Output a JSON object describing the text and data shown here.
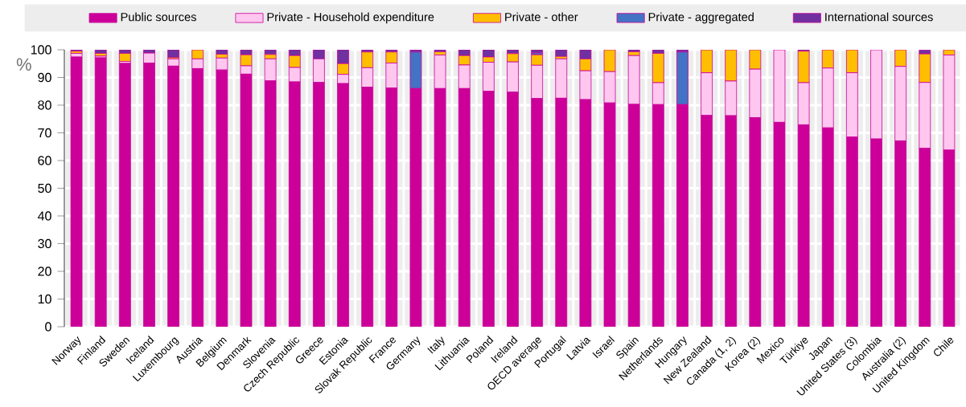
{
  "chart_data": {
    "type": "bar",
    "stacked": true,
    "ylabel": "%",
    "ylim": [
      0,
      100
    ],
    "yticks": [
      0,
      10,
      20,
      30,
      40,
      50,
      60,
      70,
      80,
      90,
      100
    ],
    "grid": true,
    "legend": "top",
    "categories": [
      "Norway",
      "Finland",
      "Sweden",
      "Iceland",
      "Luxembourg",
      "Austria",
      "Belgium",
      "Denmark",
      "Slovenia",
      "Czech Republic",
      "Greece",
      "Estonia",
      "Slovak Republic",
      "France",
      "Germany",
      "Italy",
      "Lithuania",
      "Poland",
      "Ireland",
      "OECD average",
      "Portugal",
      "Latvia",
      "Israel",
      "Spain",
      "Netherlands",
      "Hungary",
      "New Zealand",
      "Canada (1, 2)",
      "Korea (2)",
      "Mexico",
      "Türkiye",
      "Japan",
      "United States (3)",
      "Colombia",
      "Australia (2)",
      "United Kingdom",
      "Chile"
    ],
    "series": [
      {
        "name": "Public sources",
        "color": "#cc0099",
        "values": [
          97.4,
          97.1,
          95.1,
          95.2,
          94.1,
          93.2,
          92.7,
          91.2,
          88.8,
          88.4,
          88.2,
          87.8,
          86.5,
          86.2,
          86.0,
          86.0,
          86.0,
          85.0,
          84.7,
          82.4,
          82.5,
          82.0,
          80.8,
          80.3,
          80.2,
          80.2,
          76.3,
          76.2,
          75.5,
          73.8,
          72.9,
          71.8,
          68.5,
          67.8,
          67.1,
          64.4,
          63.8
        ]
      },
      {
        "name": "Private - Household expenditure",
        "color": "#ffc6ef",
        "values": [
          1.3,
          0.6,
          0.7,
          3.6,
          2.6,
          3.5,
          4.3,
          3.0,
          7.9,
          5.2,
          8.5,
          3.3,
          7.0,
          9.0,
          0,
          12.1,
          8.5,
          10.5,
          10.9,
          12.0,
          14.2,
          10.4,
          11.3,
          17.6,
          7.9,
          0,
          15.4,
          12.5,
          17.5,
          26.2,
          15.2,
          21.6,
          23.2,
          32.2,
          26.9,
          23.8,
          34.3
        ]
      },
      {
        "name": "Private - other",
        "color": "#ffbe00",
        "values": [
          0.8,
          1.0,
          2.9,
          0,
          0.5,
          3.3,
          1.4,
          4.0,
          1.6,
          4.3,
          0,
          3.9,
          5.7,
          4.0,
          0,
          1.2,
          3.4,
          1.9,
          3.0,
          3.8,
          0.9,
          4.3,
          7.9,
          1.4,
          10.6,
          0,
          8.3,
          11.3,
          7.0,
          0,
          11.4,
          6.6,
          8.3,
          0,
          6.0,
          10.3,
          1.9
        ]
      },
      {
        "name": "Private - aggregated",
        "color": "#4472c4",
        "values": [
          0,
          0,
          0,
          0,
          0,
          0,
          0,
          0,
          0,
          0,
          0,
          0,
          0,
          0,
          13.2,
          0,
          0,
          0,
          0,
          0.7,
          0,
          0,
          0,
          0,
          0,
          19.0,
          0,
          0,
          0,
          0,
          0,
          0,
          0,
          0,
          0,
          0,
          0
        ]
      },
      {
        "name": "International sources",
        "color": "#7030a0",
        "values": [
          0.5,
          1.3,
          1.3,
          1.2,
          2.8,
          0,
          1.6,
          1.8,
          1.7,
          2.1,
          3.3,
          5.0,
          0.8,
          0.8,
          0.8,
          0.7,
          2.1,
          2.6,
          1.4,
          1.1,
          2.4,
          3.3,
          0,
          0.7,
          1.3,
          0.8,
          0,
          0,
          0,
          0,
          0.5,
          0,
          0,
          null,
          0,
          1.4,
          0
        ]
      }
    ]
  }
}
